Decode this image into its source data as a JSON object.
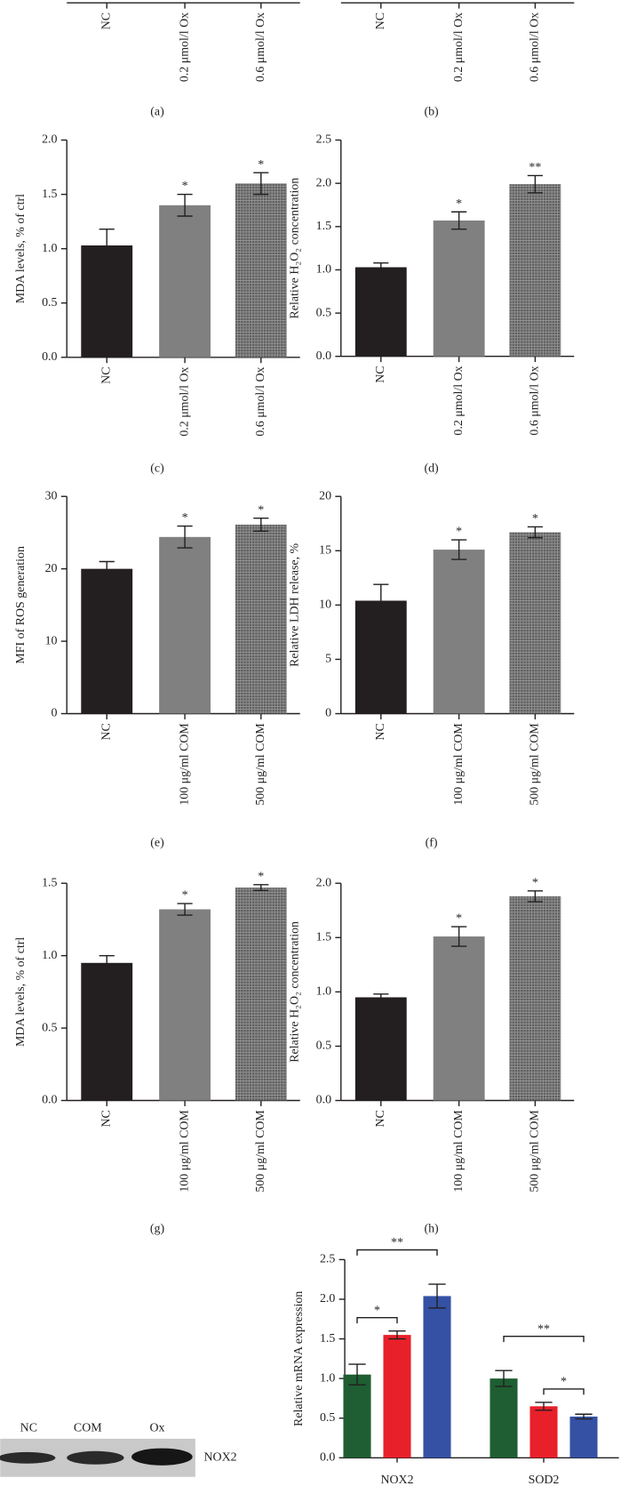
{
  "chart_data": [
    {
      "type": "bar",
      "panel_label": "(a)",
      "categories": [
        "NC",
        "0.2 μmol/l Ox",
        "0.6 μmol/l Ox"
      ]
    },
    {
      "type": "bar",
      "panel_label": "(b)",
      "categories": [
        "NC",
        "0.2 μmol/l Ox",
        "0.6 μmol/l Ox"
      ]
    },
    {
      "type": "bar",
      "panel_label": "(c)",
      "y_label": "MDA levels, % of ctrl",
      "categories": [
        "NC",
        "0.2 μmol/l Ox",
        "0.6 μmol/l Ox"
      ],
      "values": [
        1.03,
        1.4,
        1.6
      ],
      "errors": [
        0.15,
        0.1,
        0.1
      ],
      "significance": [
        null,
        "*",
        "*"
      ],
      "ylim": [
        0,
        2.0
      ],
      "yticks": [
        {
          "value": 0,
          "label": "0.0"
        },
        {
          "value": 0.5,
          "label": "0.5"
        },
        {
          "value": 1,
          "label": "1.0"
        },
        {
          "value": 1.5,
          "label": "1.5"
        },
        {
          "value": 2,
          "label": "2.0"
        }
      ]
    },
    {
      "type": "bar",
      "panel_label": "(d)",
      "y_label": "Relative H₂O₂ concentration",
      "categories": [
        "NC",
        "0.2 μmol/l Ox",
        "0.6 μmol/l Ox"
      ],
      "values": [
        1.03,
        1.57,
        1.99
      ],
      "errors": [
        0.05,
        0.1,
        0.1
      ],
      "significance": [
        null,
        "*",
        "**"
      ],
      "ylim": [
        0,
        2.5
      ],
      "yticks": [
        {
          "value": 0,
          "label": "0.0"
        },
        {
          "value": 0.5,
          "label": "0.5"
        },
        {
          "value": 1,
          "label": "1.0"
        },
        {
          "value": 1.5,
          "label": "1.5"
        },
        {
          "value": 2,
          "label": "2.0"
        },
        {
          "value": 2.5,
          "label": "2.5"
        }
      ]
    },
    {
      "type": "bar",
      "panel_label": "(e)",
      "y_label": "MFI of ROS generation",
      "categories": [
        "NC",
        "100 μg/ml COM",
        "500 μg/ml COM"
      ],
      "values": [
        20,
        24.4,
        26.1
      ],
      "errors": [
        1,
        1.5,
        0.9
      ],
      "significance": [
        null,
        "*",
        "*"
      ],
      "ylim": [
        0,
        30
      ],
      "yticks": [
        0,
        10,
        20,
        30
      ]
    },
    {
      "type": "bar",
      "panel_label": "(f)",
      "y_label": "Relative LDH release, %",
      "categories": [
        "NC",
        "100 μg/ml COM",
        "500 μg/ml COM"
      ],
      "values": [
        10.4,
        15.1,
        16.7
      ],
      "errors": [
        1.5,
        0.9,
        0.5
      ],
      "significance": [
        null,
        "*",
        "*"
      ],
      "ylim": [
        0,
        20
      ],
      "yticks": [
        0,
        5,
        10,
        15,
        20
      ]
    },
    {
      "type": "bar",
      "panel_label": "(g)",
      "y_label": "MDA levels, % of ctrl",
      "categories": [
        "NC",
        "100 μg/ml COM",
        "500 μg/ml COM"
      ],
      "values": [
        0.95,
        1.32,
        1.47
      ],
      "errors": [
        0.05,
        0.04,
        0.02
      ],
      "significance": [
        null,
        "*",
        "*"
      ],
      "ylim": [
        0,
        1.5
      ],
      "yticks": [
        {
          "value": 0,
          "label": "0.0"
        },
        {
          "value": 0.5,
          "label": "0.5"
        },
        {
          "value": 1,
          "label": "1.0"
        },
        {
          "value": 1.5,
          "label": "1.5"
        }
      ]
    },
    {
      "type": "bar",
      "panel_label": "(h)",
      "y_label": "Relative H₂O₂ concentration",
      "categories": [
        "NC",
        "100 μg/ml COM",
        "500 μg/ml COM"
      ],
      "values": [
        0.95,
        1.51,
        1.88
      ],
      "errors": [
        0.03,
        0.09,
        0.05
      ],
      "significance": [
        null,
        "*",
        "*"
      ],
      "ylim": [
        0,
        2.0
      ],
      "yticks": [
        {
          "value": 0,
          "label": "0.0"
        },
        {
          "value": 0.5,
          "label": "0.5"
        },
        {
          "value": 1,
          "label": "1.0"
        },
        {
          "value": 1.5,
          "label": "1.5"
        },
        {
          "value": 2,
          "label": "2.0"
        }
      ]
    },
    {
      "type": "grouped_bar",
      "y_label": "Relative mRNA expression",
      "categories": [
        "NOX2",
        "SOD2"
      ],
      "series": [
        {
          "color": "#1e5e32",
          "values": [
            1.05,
            1.0
          ],
          "errors": [
            0.13,
            0.1
          ]
        },
        {
          "color": "#e8202a",
          "values": [
            1.55,
            0.65
          ],
          "errors": [
            0.05,
            0.05
          ]
        },
        {
          "color": "#3451a4",
          "values": [
            2.04,
            0.52
          ],
          "errors": [
            0.15,
            0.03
          ]
        }
      ],
      "comparisons": [
        {
          "category": 0,
          "bars": [
            0,
            1
          ],
          "label": "*"
        },
        {
          "category": 0,
          "bars": [
            0,
            2
          ],
          "label": "**"
        },
        {
          "category": 1,
          "bars": [
            0,
            2
          ],
          "label": "**"
        },
        {
          "category": 1,
          "bars": [
            1,
            2
          ],
          "label": "*"
        }
      ],
      "ylim": [
        0,
        2.5
      ],
      "yticks": [
        {
          "value": 0,
          "label": "0.0"
        },
        {
          "value": 0.5,
          "label": "0.5"
        },
        {
          "value": 1,
          "label": "1.0"
        },
        {
          "value": 1.5,
          "label": "1.5"
        },
        {
          "value": 2,
          "label": "2.0"
        },
        {
          "value": 2.5,
          "label": "2.5"
        }
      ]
    }
  ],
  "blot": {
    "lanes": [
      "NC",
      "COM",
      "Ox"
    ],
    "protein": "NOX2"
  }
}
